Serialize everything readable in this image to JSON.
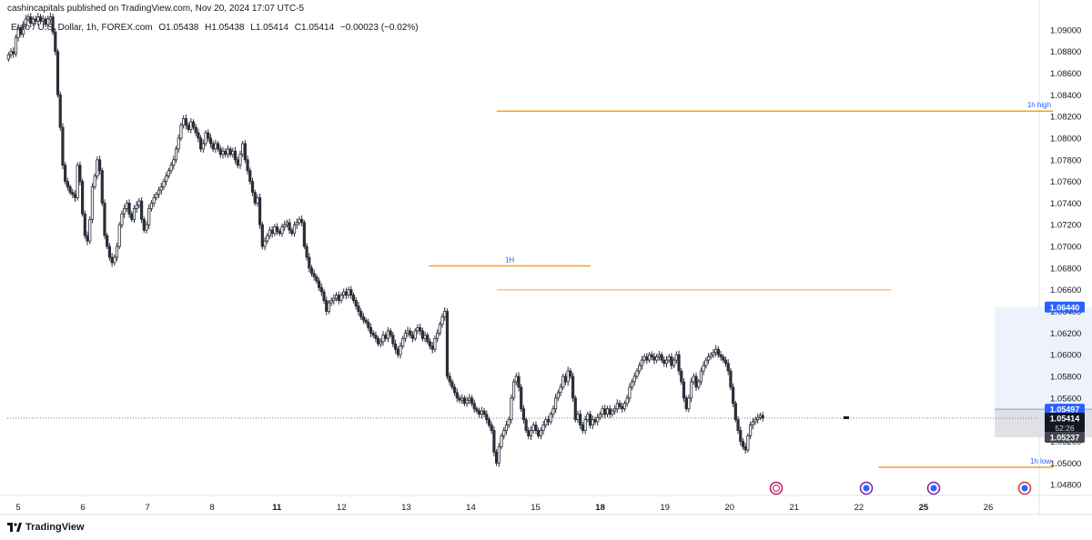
{
  "header": {
    "attribution": "cashincapitals published on TradingView.com, Nov 20, 2024 17:07 UTC-5",
    "symbol": "Euro / U.S. Dollar, 1h, FOREX.com",
    "open": "O1.05438",
    "high": "H1.05438",
    "low": "L1.05414",
    "close": "C1.05414",
    "change": "−0.00023 (−0.02%)"
  },
  "footer": {
    "brand": "TradingView"
  },
  "colors": {
    "candle": "#2a2e39",
    "level_line": "#f7a21b",
    "label_text": "#2962ff",
    "axis_text": "#131722",
    "price_badge": "#2962ff",
    "last_badge": "#131722",
    "low_badge": "#434651",
    "zone_fill": "#e8eefb"
  },
  "chart_data": {
    "type": "candlestick",
    "timeframe": "1h",
    "y_ticks": [
      "1.09000",
      "1.08800",
      "1.08600",
      "1.08400",
      "1.08200",
      "1.08000",
      "1.07800",
      "1.07600",
      "1.07400",
      "1.07200",
      "1.07000",
      "1.06800",
      "1.06600",
      "1.06400",
      "1.06200",
      "1.06000",
      "1.05800",
      "1.05600",
      "1.05400",
      "1.05200",
      "1.05000",
      "1.04800"
    ],
    "x_ticks": [
      "5",
      "6",
      "7",
      "8",
      "11",
      "12",
      "13",
      "14",
      "15",
      "18",
      "19",
      "20",
      "21",
      "22",
      "25",
      "26"
    ],
    "bold_x_ticks": [
      "11",
      "18",
      "25"
    ],
    "ylim": [
      1.047,
      1.0915
    ],
    "price_badges": [
      {
        "value": 1.0644,
        "text": "1.06440",
        "style": "target"
      },
      {
        "value": 1.05497,
        "text": "1.05497",
        "style": "target"
      },
      {
        "value": 1.05414,
        "text": "1.05414",
        "sub": "52:26",
        "style": "last"
      },
      {
        "value": 1.05237,
        "text": "1.05237",
        "style": "stop"
      }
    ],
    "levels": [
      {
        "label": "1h high",
        "value": 1.0825,
        "from": 7.4,
        "to": 16.0
      },
      {
        "label": "1H",
        "value": 1.0682,
        "from": 6.35,
        "to": 8.85
      },
      {
        "label": "",
        "value": 1.066,
        "from": 7.4,
        "to": 13.5
      },
      {
        "label": "1h low",
        "value": 1.0496,
        "from": 13.3,
        "to": 16.0
      }
    ],
    "position_zone": {
      "entry": 1.05497,
      "target": 1.0644,
      "stop": 1.05237,
      "from": 15.1,
      "to": 16.7
    },
    "closes": [
      1.0877,
      1.088,
      1.0878,
      1.0893,
      1.0902,
      1.0896,
      1.0905,
      1.091,
      1.0912,
      1.0906,
      1.091,
      1.0908,
      1.0912,
      1.0908,
      1.091,
      1.0905,
      1.091,
      1.0912,
      1.0898,
      1.088,
      1.084,
      1.081,
      1.0775,
      1.076,
      1.0755,
      1.075,
      1.0748,
      1.0745,
      1.0775,
      1.076,
      1.073,
      1.071,
      1.0705,
      1.0725,
      1.0755,
      1.0765,
      1.078,
      1.077,
      1.074,
      1.071,
      1.07,
      1.069,
      1.0685,
      1.069,
      1.07,
      1.072,
      1.073,
      1.0735,
      1.074,
      1.073,
      1.0725,
      1.0735,
      1.0738,
      1.0742,
      1.0725,
      1.0715,
      1.072,
      1.0735,
      1.074,
      1.0745,
      1.0748,
      1.0752,
      1.0755,
      1.076,
      1.0765,
      1.077,
      1.0775,
      1.078,
      1.079,
      1.08,
      1.0812,
      1.0818,
      1.0812,
      1.0808,
      1.0815,
      1.081,
      1.0805,
      1.08,
      1.079,
      1.0795,
      1.0805,
      1.08,
      1.0795,
      1.079,
      1.0795,
      1.079,
      1.0785,
      1.0788,
      1.0785,
      1.079,
      1.0785,
      1.0788,
      1.078,
      1.0775,
      1.0785,
      1.0795,
      1.078,
      1.077,
      1.076,
      1.075,
      1.074,
      1.0745,
      1.072,
      1.07,
      1.0705,
      1.071,
      1.0715,
      1.0712,
      1.0718,
      1.0714,
      1.0712,
      1.0718,
      1.072,
      1.0722,
      1.0715,
      1.0712,
      1.072,
      1.0722,
      1.0725,
      1.0722,
      1.07,
      1.069,
      1.068,
      1.0675,
      1.0672,
      1.0668,
      1.0662,
      1.0658,
      1.065,
      1.064,
      1.0648,
      1.065,
      1.0652,
      1.0655,
      1.065,
      1.0655,
      1.0658,
      1.0655,
      1.066,
      1.0655,
      1.065,
      1.0645,
      1.064,
      1.0635,
      1.0632,
      1.063,
      1.0625,
      1.062,
      1.0618,
      1.0615,
      1.061,
      1.0612,
      1.0618,
      1.0615,
      1.0622,
      1.0618,
      1.061,
      1.0605,
      1.06,
      1.0608,
      1.0615,
      1.062,
      1.0622,
      1.0618,
      1.0615,
      1.0622,
      1.0625,
      1.0622,
      1.0615,
      1.0618,
      1.0612,
      1.0608,
      1.0605,
      1.0615,
      1.062,
      1.0628,
      1.0635,
      1.064,
      1.058,
      1.0575,
      1.057,
      1.0565,
      1.056,
      1.0558,
      1.056,
      1.0555,
      1.0558,
      1.056,
      1.0555,
      1.055,
      1.0548,
      1.0545,
      1.0548,
      1.0545,
      1.054,
      1.0535,
      1.053,
      1.051,
      1.05,
      1.0515,
      1.0525,
      1.053,
      1.0535,
      1.054,
      1.056,
      1.0575,
      1.058,
      1.057,
      1.055,
      1.054,
      1.053,
      1.0525,
      1.053,
      1.0535,
      1.053,
      1.0525,
      1.053,
      1.0535,
      1.054,
      1.0538,
      1.0545,
      1.055,
      1.056,
      1.0565,
      1.057,
      1.058,
      1.0575,
      1.0585,
      1.058,
      1.056,
      1.054,
      1.0545,
      1.0535,
      1.053,
      1.054,
      1.0545,
      1.0535,
      1.054,
      1.0538,
      1.0542,
      1.0545,
      1.055,
      1.0545,
      1.055,
      1.0545,
      1.0548,
      1.055,
      1.0555,
      1.0552,
      1.055,
      1.0555,
      1.056,
      1.057,
      1.0575,
      1.058,
      1.0585,
      1.059,
      1.0595,
      1.0598,
      1.0595,
      1.06,
      1.0598,
      1.0595,
      1.0598,
      1.06,
      1.0595,
      1.0592,
      1.0595,
      1.0598,
      1.059,
      1.0595,
      1.06,
      1.0585,
      1.0575,
      1.056,
      1.055,
      1.056,
      1.0575,
      1.058,
      1.057,
      1.0575,
      1.0585,
      1.059,
      1.0595,
      1.0598,
      1.06,
      1.0602,
      1.0605,
      1.06,
      1.0598,
      1.0595,
      1.0592,
      1.0585,
      1.057,
      1.0555,
      1.054,
      1.053,
      1.052,
      1.0515,
      1.0512,
      1.0525,
      1.0535,
      1.0538,
      1.054,
      1.0542,
      1.0544,
      1.05414
    ]
  }
}
